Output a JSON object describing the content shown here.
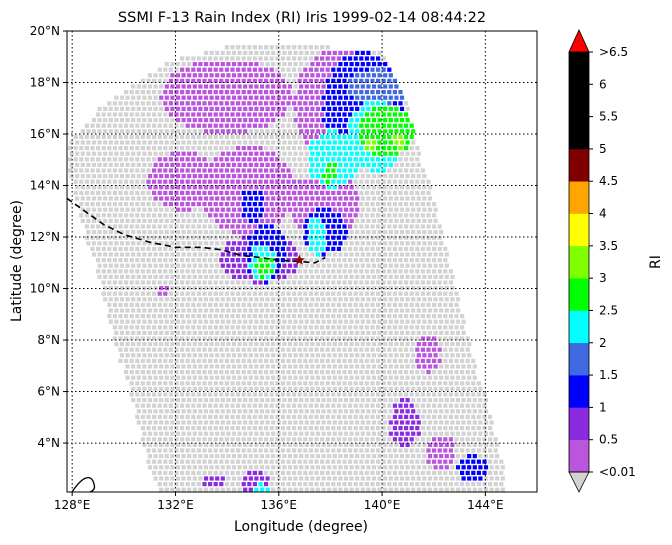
{
  "chart_data": {
    "type": "heatmap",
    "title": "SSMI F-13 Rain Index (RI) Iris 1999-02-14 08:44:22",
    "xlabel": "Longitude (degree)",
    "ylabel": "Latitude (degree)",
    "xlim": [
      127.8,
      146.0
    ],
    "ylim": [
      2.1,
      20.0
    ],
    "x_ticks": [
      128,
      132,
      136,
      140,
      144
    ],
    "x_tick_labels": [
      "128°E",
      "132°E",
      "136°E",
      "140°E",
      "144°E"
    ],
    "y_ticks": [
      4,
      6,
      8,
      10,
      12,
      14,
      16,
      18,
      20
    ],
    "y_tick_labels": [
      "4°N",
      "6°N",
      "8°N",
      "10°N",
      "12°N",
      "14°N",
      "16°N",
      "18°N",
      "20°N"
    ],
    "grid": true,
    "colorbar": {
      "label": "RI",
      "tick_labels": [
        "<0.01",
        "0.5",
        "1",
        "1.5",
        "2",
        "2.5",
        "3",
        "3.5",
        "4",
        "4.5",
        "5",
        "5.5",
        "6",
        ">6.5"
      ],
      "colors": [
        "#bb55dd",
        "#8a2be2",
        "#0000ff",
        "#4169e1",
        "#00ffff",
        "#00ff00",
        "#7fff00",
        "#ffff00",
        "#ffa500",
        "#800000",
        "#000000",
        "#000000",
        "#000000"
      ],
      "over_color": "#ff0000",
      "under_color": "#d3d3d3"
    },
    "swath_color": "#d3d3d3",
    "track": {
      "lon": [
        127.8,
        128.5,
        129.2,
        130.0,
        131.0,
        132.0,
        133.0,
        133.8,
        134.5,
        135.3,
        136.0,
        136.8,
        137.4,
        137.8
      ],
      "lat": [
        13.5,
        13.0,
        12.5,
        12.1,
        11.8,
        11.6,
        11.6,
        11.5,
        11.3,
        11.2,
        11.1,
        11.05,
        11.0,
        11.2
      ],
      "current_lon": 136.8,
      "current_lat": 11.1
    },
    "rain_regions": [
      {
        "lon": [
          131.3,
          136.5
        ],
        "lat": [
          16.1,
          19.0
        ],
        "value": 0.3
      },
      {
        "lon": [
          136.5,
          139.8
        ],
        "lat": [
          15.0,
          19.4
        ],
        "value": 0.3
      },
      {
        "lon": [
          130.8,
          133.6
        ],
        "lat": [
          13.1,
          15.4
        ],
        "value": 0.3
      },
      {
        "lon": [
          132.8,
          136.6
        ],
        "lat": [
          12.2,
          15.6
        ],
        "value": 0.3
      },
      {
        "lon": [
          136.3,
          139.1
        ],
        "lat": [
          12.1,
          14.6
        ],
        "value": 0.3
      },
      {
        "lon": [
          133.6,
          136.8
        ],
        "lat": [
          10.3,
          12.2
        ],
        "value": 0.7
      },
      {
        "lon": [
          137.6,
          140.8
        ],
        "lat": [
          14.8,
          19.3
        ],
        "value": 1.2
      },
      {
        "lon": [
          138.6,
          141.0
        ],
        "lat": [
          17.2,
          18.6
        ],
        "value": 1.7
      },
      {
        "lon": [
          134.4,
          135.4
        ],
        "lat": [
          12.6,
          14.0
        ],
        "value": 1.2
      },
      {
        "lon": [
          134.6,
          136.2
        ],
        "lat": [
          10.3,
          12.6
        ],
        "value": 1.2
      },
      {
        "lon": [
          136.8,
          138.6
        ],
        "lat": [
          11.4,
          13.2
        ],
        "value": 1.2
      },
      {
        "lon": [
          138.6,
          140.8
        ],
        "lat": [
          14.6,
          17.4
        ],
        "value": 2.2
      },
      {
        "lon": [
          137.0,
          139.0
        ],
        "lat": [
          14.0,
          16.2
        ],
        "value": 2.2
      },
      {
        "lon": [
          137.0,
          137.8
        ],
        "lat": [
          11.4,
          12.8
        ],
        "value": 2.2
      },
      {
        "lon": [
          134.8,
          135.8
        ],
        "lat": [
          10.4,
          11.8
        ],
        "value": 2.2
      },
      {
        "lon": [
          139.0,
          141.2
        ],
        "lat": [
          15.2,
          17.2
        ],
        "value": 2.8
      },
      {
        "lon": [
          135.0,
          135.7
        ],
        "lat": [
          10.5,
          11.4
        ],
        "value": 2.8
      },
      {
        "lon": [
          137.6,
          138.2
        ],
        "lat": [
          14.2,
          15.0
        ],
        "value": 2.8
      },
      {
        "lon": [
          140.3,
          140.9
        ],
        "lat": [
          15.5,
          16.1
        ],
        "value": 3.2
      },
      {
        "lon": [
          139.2,
          139.7
        ],
        "lat": [
          15.4,
          15.9
        ],
        "value": 3.2
      },
      {
        "lon": [
          131.2,
          131.7
        ],
        "lat": [
          9.8,
          10.3
        ],
        "value": 0.3
      },
      {
        "lon": [
          141.2,
          142.2
        ],
        "lat": [
          6.8,
          8.3
        ],
        "value": 0.3
      },
      {
        "lon": [
          140.2,
          141.4
        ],
        "lat": [
          3.9,
          5.8
        ],
        "value": 0.7
      },
      {
        "lon": [
          141.6,
          142.8
        ],
        "lat": [
          3.0,
          4.4
        ],
        "value": 0.3
      },
      {
        "lon": [
          142.8,
          144.0
        ],
        "lat": [
          2.5,
          3.6
        ],
        "value": 1.2
      },
      {
        "lon": [
          134.5,
          135.6
        ],
        "lat": [
          2.1,
          3.0
        ],
        "value": 0.7
      },
      {
        "lon": [
          135.0,
          135.5
        ],
        "lat": [
          2.1,
          2.5
        ],
        "value": 2.2
      },
      {
        "lon": [
          133.0,
          133.8
        ],
        "lat": [
          2.3,
          2.9
        ],
        "value": 0.7
      }
    ]
  }
}
